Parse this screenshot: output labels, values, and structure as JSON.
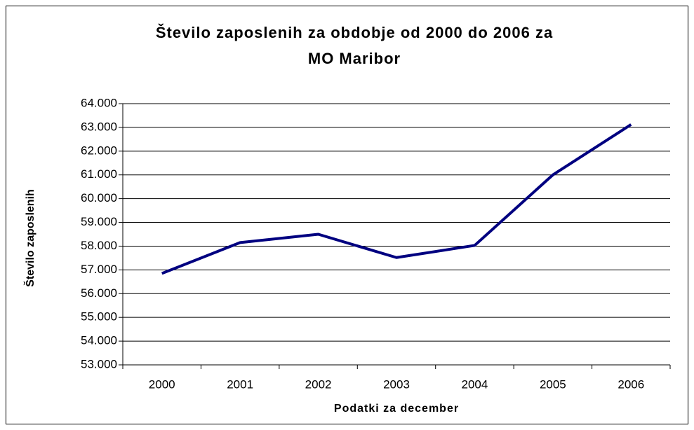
{
  "chart_data": {
    "type": "line",
    "title": [
      "Število zaposlenih za obdobje od 2000 do  2006 za",
      "MO Maribor"
    ],
    "x_label": "Podatki za december",
    "y_label": "Število zaposlenih",
    "categories": [
      "2000",
      "2001",
      "2002",
      "2003",
      "2004",
      "2005",
      "2006"
    ],
    "series": [
      {
        "color": "#000080",
        "values": [
          56850,
          58150,
          58500,
          57520,
          58030,
          61000,
          63120
        ]
      }
    ],
    "ylim": [
      53000,
      64000
    ],
    "yticks": [
      {
        "value": 53000,
        "label": "53.000"
      },
      {
        "value": 54000,
        "label": "54.000"
      },
      {
        "value": 55000,
        "label": "55.000"
      },
      {
        "value": 56000,
        "label": "56.000"
      },
      {
        "value": 57000,
        "label": "57.000"
      },
      {
        "value": 58000,
        "label": "58.000"
      },
      {
        "value": 59000,
        "label": "59.000"
      },
      {
        "value": 60000,
        "label": "60.000"
      },
      {
        "value": 61000,
        "label": "61.000"
      },
      {
        "value": 62000,
        "label": "62.000"
      },
      {
        "value": 63000,
        "label": "63.000"
      },
      {
        "value": 64000,
        "label": "64.000"
      }
    ],
    "grid": true
  }
}
